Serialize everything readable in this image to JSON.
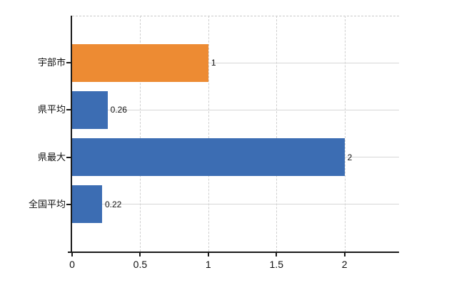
{
  "chart_data": {
    "type": "bar",
    "orientation": "horizontal",
    "title": "",
    "xlabel": "",
    "ylabel": "",
    "categories": [
      "宇部市",
      "県平均",
      "県最大",
      "全国平均"
    ],
    "values": [
      1,
      0.26,
      2,
      0.22
    ],
    "value_labels": [
      "1",
      "0.26",
      "2",
      "0.22"
    ],
    "bar_colors": [
      "#ed8b33",
      "#3c6db3",
      "#3c6db3",
      "#3c6db3"
    ],
    "x_ticks": [
      0,
      0.5,
      1,
      1.5,
      2
    ],
    "x_tick_labels": [
      "0",
      "0.5",
      "1",
      "1.5",
      "2"
    ],
    "xlim": [
      0,
      2.4
    ],
    "grid": true,
    "legend": false,
    "colors": {
      "highlight_bar": "#ed8b33",
      "default_bar": "#3c6db3",
      "axis": "#1a1a1a",
      "hgridline": "#d7d7d7",
      "vgridline": "#cfcfcf",
      "text": "#111111"
    }
  }
}
